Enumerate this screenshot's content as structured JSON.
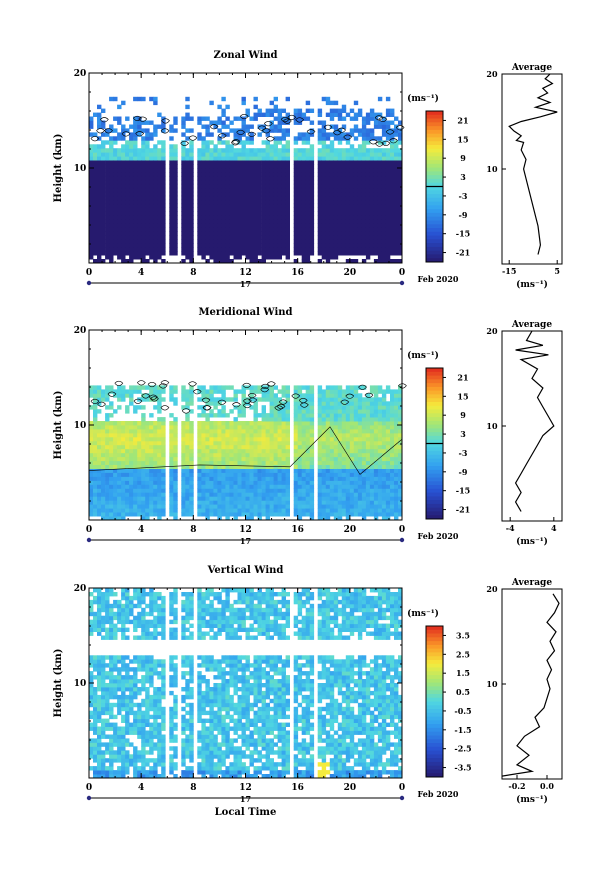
{
  "figure": {
    "date_label": "Feb 2020",
    "xlabel": "Local Time",
    "day_label": "17",
    "colorbar_unit": "(ms⁻¹)",
    "profile_title": "Average",
    "profile_xlabel": "(ms⁻¹)",
    "ylabel": "Height (km)"
  },
  "chart_data": [
    {
      "type": "heatmap",
      "title": "Zonal Wind",
      "xlabel": "Local Time",
      "ylabel": "Height (km)",
      "x_ticks": [
        "0",
        "4",
        "8",
        "12",
        "16",
        "20",
        "0"
      ],
      "xlim": [
        0,
        24
      ],
      "ylim": [
        0,
        20
      ],
      "y_ticks": [
        "10",
        "20"
      ],
      "colorbar": {
        "unit": "(ms⁻¹)",
        "ticks": [
          "21",
          "15",
          "9",
          "3",
          "-3",
          "-9",
          "-15",
          "-21"
        ],
        "range": [
          -24,
          24
        ],
        "zero_contour": true
      },
      "data_gaps_hours": [
        [
          5.9,
          6.1
        ],
        [
          6.8,
          7.0
        ],
        [
          8.0,
          8.3
        ],
        [
          15.5,
          15.7
        ],
        [
          17.2,
          17.5
        ]
      ],
      "description_values": {
        "lower_troposphere": -9,
        "upper_troposphere": 3,
        "tropopause_band_km": [
          12,
          16
        ]
      },
      "profile": {
        "title": "Average",
        "xlabel": "(ms⁻¹)",
        "xlim": [
          -18,
          7
        ],
        "x_ticks": [
          "-15",
          "5"
        ],
        "y_ticks": [
          "10",
          "20"
        ],
        "points": [
          [
            -3,
            1
          ],
          [
            -2,
            2
          ],
          [
            -2.5,
            3
          ],
          [
            -3,
            4
          ],
          [
            -4,
            5
          ],
          [
            -5,
            6
          ],
          [
            -6,
            7
          ],
          [
            -7,
            8
          ],
          [
            -8,
            9
          ],
          [
            -9,
            10
          ],
          [
            -8,
            11
          ],
          [
            -10,
            12
          ],
          [
            -9,
            12.8
          ],
          [
            -12,
            13
          ],
          [
            -10,
            13.5
          ],
          [
            -13,
            14
          ],
          [
            -15,
            14.5
          ],
          [
            -10,
            15
          ],
          [
            -2,
            15.5
          ],
          [
            5,
            16
          ],
          [
            -4,
            16.5
          ],
          [
            2,
            17
          ],
          [
            -3,
            17.5
          ],
          [
            1,
            18
          ],
          [
            -1,
            18.5
          ],
          [
            3,
            19
          ],
          [
            0,
            19.5
          ],
          [
            2,
            20
          ]
        ]
      }
    },
    {
      "type": "heatmap",
      "title": "Meridional Wind",
      "xlabel": "Local Time",
      "ylabel": "Height (km)",
      "x_ticks": [
        "0",
        "4",
        "8",
        "12",
        "16",
        "20",
        "0"
      ],
      "xlim": [
        0,
        24
      ],
      "ylim": [
        0,
        20
      ],
      "y_ticks": [
        "10",
        "20"
      ],
      "colorbar": {
        "unit": "(ms⁻¹)",
        "ticks": [
          "21",
          "15",
          "9",
          "3",
          "-3",
          "-9",
          "-15",
          "-21"
        ],
        "range": [
          -24,
          24
        ],
        "zero_contour": true
      },
      "data_gaps_hours": [
        [
          5.9,
          6.1
        ],
        [
          6.8,
          7.0
        ],
        [
          8.0,
          8.3
        ],
        [
          15.5,
          15.7
        ],
        [
          17.2,
          17.5
        ]
      ],
      "description_values": {
        "lower_troposphere": -3,
        "mid_troposphere": 6,
        "upper_troposphere": 0
      },
      "profile": {
        "title": "Average",
        "xlabel": "(ms⁻¹)",
        "xlim": [
          -5.5,
          5.5
        ],
        "x_ticks": [
          "-4",
          "4"
        ],
        "y_ticks": [
          "10",
          "20"
        ],
        "points": [
          [
            -2,
            1
          ],
          [
            -3,
            2
          ],
          [
            -2,
            3
          ],
          [
            -3,
            4
          ],
          [
            -2,
            5
          ],
          [
            -1,
            6
          ],
          [
            0,
            7
          ],
          [
            1,
            8
          ],
          [
            2,
            9
          ],
          [
            4,
            10
          ],
          [
            3,
            11
          ],
          [
            2,
            12
          ],
          [
            1,
            13
          ],
          [
            2,
            14
          ],
          [
            0,
            15
          ],
          [
            1,
            16
          ],
          [
            -2,
            17
          ],
          [
            3,
            17.5
          ],
          [
            -3,
            18
          ],
          [
            2,
            18.5
          ],
          [
            -1,
            19
          ],
          [
            0,
            20
          ]
        ]
      }
    },
    {
      "type": "heatmap",
      "title": "Vertical Wind",
      "xlabel": "Local Time",
      "ylabel": "Height (km)",
      "x_ticks": [
        "0",
        "4",
        "8",
        "12",
        "16",
        "20",
        "0"
      ],
      "xlim": [
        0,
        24
      ],
      "ylim": [
        0,
        20
      ],
      "y_ticks": [
        "10",
        "20"
      ],
      "colorbar": {
        "unit": "(ms⁻¹)",
        "ticks": [
          "3.5",
          "2.5",
          "1.5",
          "0.5",
          "-0.5",
          "-1.5",
          "-2.5",
          "-3.5"
        ],
        "range": [
          -4,
          4
        ],
        "zero_contour": false
      },
      "data_gaps_hours": [
        [
          5.9,
          6.1
        ],
        [
          6.8,
          7.0
        ],
        [
          8.0,
          8.3
        ],
        [
          15.5,
          15.7
        ],
        [
          17.2,
          17.5
        ]
      ],
      "description_values": {
        "typical": -0.1
      },
      "profile": {
        "title": "Average",
        "xlabel": "(ms⁻¹)",
        "xlim": [
          -0.3,
          0.1
        ],
        "x_ticks": [
          "-0.2",
          "0.0"
        ],
        "y_ticks": [
          "10",
          "20"
        ],
        "points": [
          [
            -0.3,
            0.3
          ],
          [
            -0.1,
            0.8
          ],
          [
            -0.2,
            1.5
          ],
          [
            -0.12,
            2.5
          ],
          [
            -0.2,
            3.5
          ],
          [
            -0.15,
            4.5
          ],
          [
            -0.05,
            5.5
          ],
          [
            -0.08,
            6.5
          ],
          [
            -0.02,
            7.5
          ],
          [
            0.0,
            8.5
          ],
          [
            0.02,
            9.5
          ],
          [
            0.0,
            10.5
          ],
          [
            0.03,
            11.5
          ],
          [
            0.0,
            12.5
          ],
          [
            0.05,
            13.5
          ],
          [
            0.02,
            14.5
          ],
          [
            0.06,
            15.5
          ],
          [
            0.0,
            16.5
          ],
          [
            0.05,
            17.5
          ],
          [
            0.08,
            18.5
          ],
          [
            0.04,
            19.5
          ]
        ]
      }
    }
  ]
}
